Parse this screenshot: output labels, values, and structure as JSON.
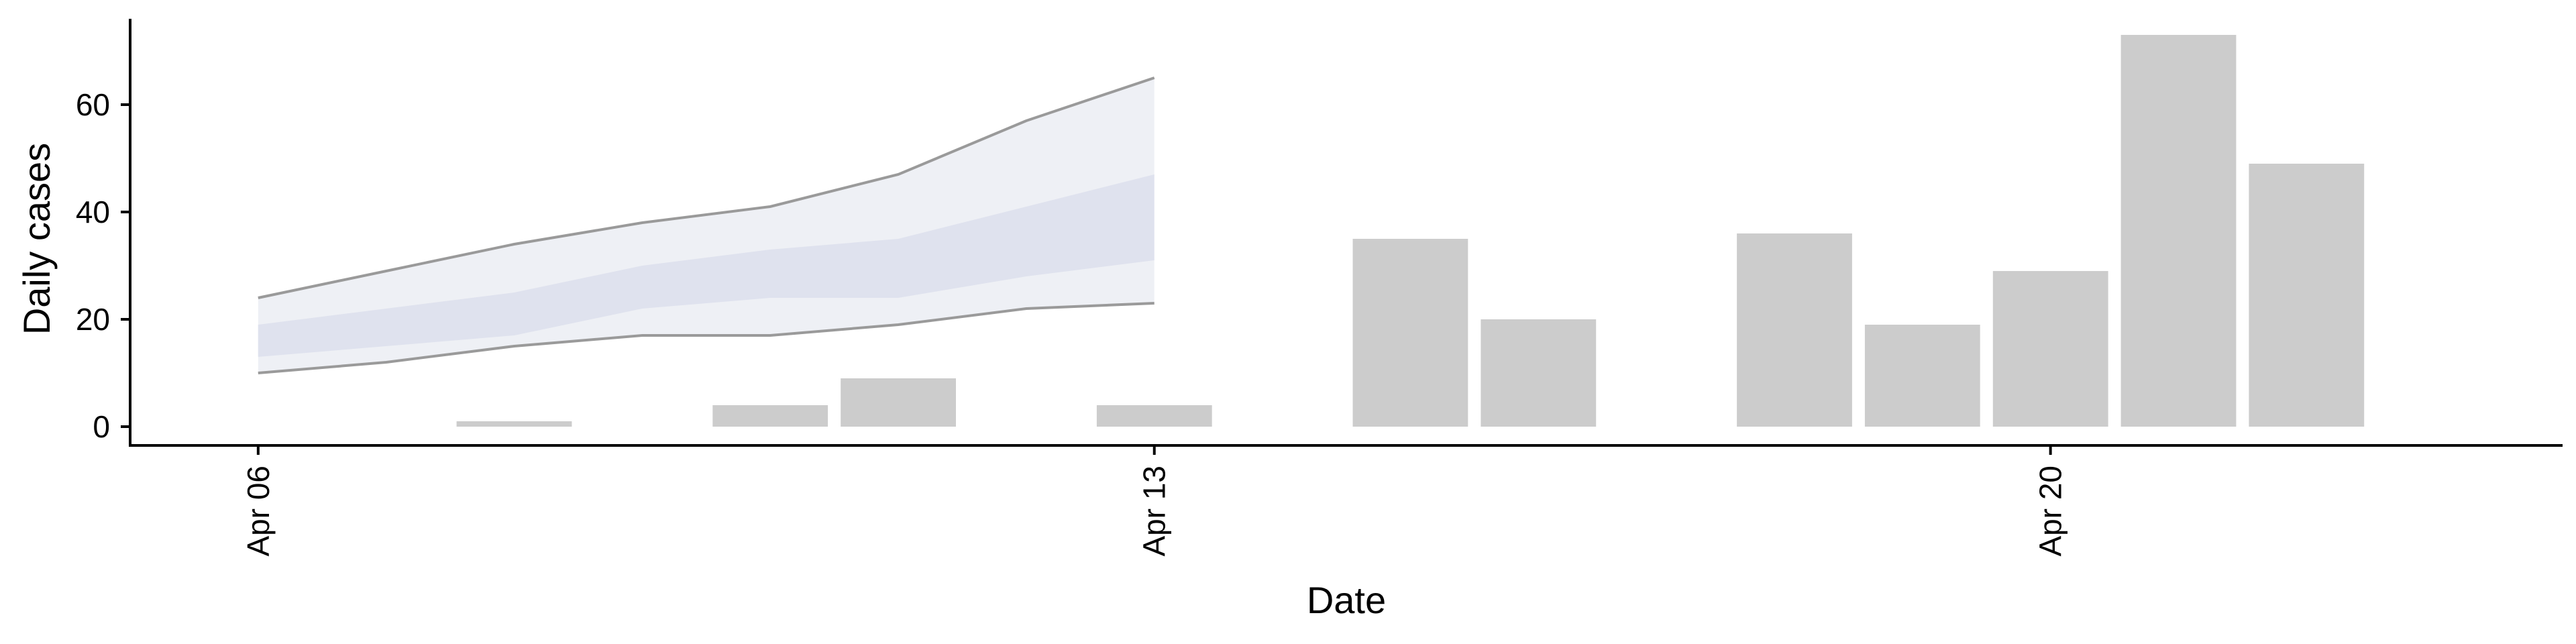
{
  "chart_data": {
    "type": "bar",
    "xlabel": "Date",
    "ylabel": "Daily cases",
    "x_range": [
      "2020-04-05",
      "2020-04-24"
    ],
    "ylim": [
      -3.5,
      76
    ],
    "grid": false,
    "legend": "none",
    "x_ticks": [
      {
        "date": "2020-04-06",
        "label": "Apr 06"
      },
      {
        "date": "2020-04-13",
        "label": "Apr 13"
      },
      {
        "date": "2020-04-20",
        "label": "Apr 20"
      }
    ],
    "y_ticks": [
      {
        "value": 0,
        "label": "0"
      },
      {
        "value": 20,
        "label": "20"
      },
      {
        "value": 40,
        "label": "40"
      },
      {
        "value": 60,
        "label": "60"
      }
    ],
    "bars": [
      {
        "date": "2020-04-07",
        "value": 0
      },
      {
        "date": "2020-04-08",
        "value": 1
      },
      {
        "date": "2020-04-09",
        "value": 0
      },
      {
        "date": "2020-04-10",
        "value": 4
      },
      {
        "date": "2020-04-11",
        "value": 9
      },
      {
        "date": "2020-04-12",
        "value": 0
      },
      {
        "date": "2020-04-13",
        "value": 4
      },
      {
        "date": "2020-04-14",
        "value": 0
      },
      {
        "date": "2020-04-15",
        "value": 35
      },
      {
        "date": "2020-04-16",
        "value": 20
      },
      {
        "date": "2020-04-17",
        "value": 0
      },
      {
        "date": "2020-04-18",
        "value": 36
      },
      {
        "date": "2020-04-19",
        "value": 19
      },
      {
        "date": "2020-04-20",
        "value": 29
      },
      {
        "date": "2020-04-21",
        "value": 73
      },
      {
        "date": "2020-04-22",
        "value": 49
      }
    ],
    "forecast": {
      "dates": [
        "2020-04-06",
        "2020-04-07",
        "2020-04-08",
        "2020-04-09",
        "2020-04-10",
        "2020-04-11",
        "2020-04-12",
        "2020-04-13"
      ],
      "outer_low": [
        10,
        12,
        15,
        17,
        17,
        19,
        22,
        23
      ],
      "outer_high": [
        24,
        29,
        34,
        38,
        41,
        47,
        57,
        65
      ],
      "inner_low": [
        13,
        15,
        17,
        22,
        24,
        24,
        28,
        31
      ],
      "inner_high": [
        19,
        22,
        25,
        30,
        33,
        35,
        41,
        47
      ]
    },
    "colors": {
      "bar": "#cccccc",
      "outer_band": "#eef0f5",
      "inner_band": "#dfe2ee",
      "band_line": "#9a9a9a",
      "axis": "#000000"
    }
  }
}
